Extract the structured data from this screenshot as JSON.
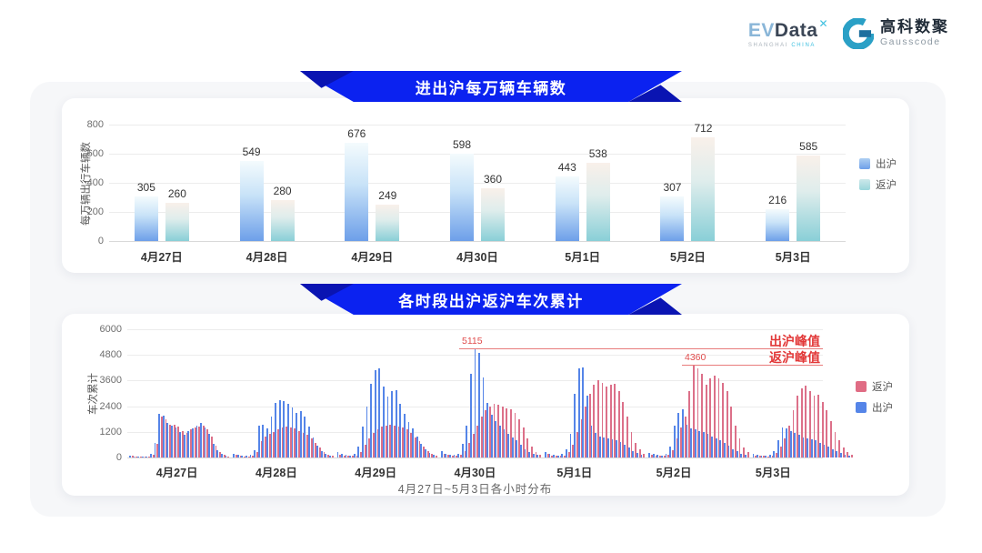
{
  "header": {
    "evdata": {
      "brand_ev": "EV",
      "brand_data": "Data",
      "superscript": "✕",
      "subtext_left": "SHANGHAI",
      "subtext_right": "CHINA"
    },
    "gausscode": {
      "name_cn": "高科数聚",
      "name_en": "Gausscode",
      "icon": "g-mark-icon"
    }
  },
  "colors": {
    "banner_blue": "#0b22f0",
    "banner_fold": "#0a14b2",
    "annotation_red": "#e23838",
    "grid": "#ececec"
  },
  "chart_data": [
    {
      "type": "bar",
      "title": "进出沪每万辆车辆数",
      "ylabel": "每万辆出行车辆数",
      "ylim": [
        0,
        800
      ],
      "yticks": [
        0,
        200,
        400,
        600,
        800
      ],
      "grid": true,
      "legend_position": "right",
      "categories": [
        "4月27日",
        "4月28日",
        "4月29日",
        "4月30日",
        "5月1日",
        "5月2日",
        "5月3日"
      ],
      "series": [
        {
          "name": "出沪",
          "color_top": "#f4fbfd",
          "color_bottom": "#6d9fe9",
          "values": [
            305,
            549,
            676,
            598,
            443,
            307,
            216
          ]
        },
        {
          "name": "返沪",
          "color_top": "#f9f0ea",
          "color_bottom": "#89cfd7",
          "values": [
            260,
            280,
            249,
            360,
            538,
            712,
            585
          ]
        }
      ]
    },
    {
      "type": "bar",
      "title": "各时段出沪返沪车次累计",
      "ylabel": "车次累计",
      "xlabel": "4月27日~5月3日各小时分布",
      "ylim": [
        0,
        6000
      ],
      "yticks": [
        0,
        1200,
        2400,
        3600,
        4800,
        6000
      ],
      "grid": true,
      "legend_position": "right",
      "categories": [
        "4月27日",
        "4月28日",
        "4月29日",
        "4月30日",
        "5月1日",
        "5月2日",
        "5月3日"
      ],
      "legend": [
        {
          "name": "返沪",
          "color": "#e06c84"
        },
        {
          "name": "出沪",
          "color": "#5585e8"
        }
      ],
      "annotations": [
        {
          "label": "出沪峰值",
          "value": 5115
        },
        {
          "label": "返沪峰值",
          "value": 4360
        }
      ],
      "series": [
        {
          "name": "出沪",
          "color": "#5585e8",
          "values_by_day": [
            [
              90,
              60,
              50,
              45,
              60,
              150,
              700,
              2050,
              1950,
              1600,
              1500,
              1400,
              1200,
              1050,
              1250,
              1350,
              1500,
              1600,
              1400,
              1100,
              650,
              320,
              150,
              80
            ],
            [
              180,
              120,
              90,
              80,
              110,
              350,
              1500,
              1550,
              1350,
              1900,
              2550,
              2700,
              2650,
              2500,
              2350,
              2100,
              2150,
              1900,
              1450,
              950,
              550,
              300,
              180,
              100
            ],
            [
              250,
              170,
              120,
              100,
              150,
              500,
              1450,
              2400,
              3450,
              4100,
              4150,
              3300,
              2850,
              3100,
              3150,
              2500,
              2050,
              1650,
              1350,
              1000,
              650,
              380,
              220,
              130
            ],
            [
              280,
              190,
              140,
              110,
              190,
              650,
              1500,
              3900,
              5115,
              4880,
              3750,
              2550,
              2000,
              1700,
              1500,
              1300,
              1100,
              950,
              800,
              600,
              400,
              260,
              170,
              110
            ],
            [
              240,
              170,
              120,
              100,
              150,
              400,
              1100,
              3000,
              4150,
              4200,
              2900,
              1500,
              1150,
              1000,
              950,
              900,
              850,
              800,
              720,
              600,
              450,
              300,
              200,
              130
            ],
            [
              200,
              150,
              110,
              90,
              150,
              500,
              1500,
              2100,
              2250,
              1550,
              1350,
              1300,
              1250,
              1200,
              1100,
              1000,
              900,
              800,
              700,
              550,
              400,
              280,
              190,
              120
            ],
            [
              150,
              110,
              90,
              80,
              120,
              300,
              800,
              1400,
              1350,
              1250,
              1150,
              1050,
              950,
              900,
              850,
              800,
              700,
              600,
              500,
              400,
              300,
              200,
              140,
              90
            ]
          ]
        },
        {
          "name": "返沪",
          "color": "#dc7089",
          "values_by_day": [
            [
              70,
              50,
              40,
              35,
              50,
              120,
              650,
              1900,
              1800,
              1550,
              1550,
              1450,
              1250,
              1150,
              1300,
              1400,
              1450,
              1500,
              1300,
              1000,
              550,
              260,
              110,
              60
            ],
            [
              110,
              80,
              60,
              55,
              80,
              250,
              750,
              1000,
              1100,
              1200,
              1300,
              1400,
              1450,
              1400,
              1350,
              1250,
              1150,
              1050,
              900,
              700,
              450,
              260,
              140,
              80
            ],
            [
              140,
              100,
              80,
              70,
              90,
              250,
              600,
              900,
              1150,
              1300,
              1450,
              1500,
              1550,
              1500,
              1450,
              1400,
              1300,
              1150,
              950,
              750,
              500,
              300,
              170,
              100
            ],
            [
              170,
              120,
              90,
              80,
              120,
              300,
              700,
              1100,
              1500,
              1900,
              2200,
              2400,
              2500,
              2450,
              2400,
              2300,
              2250,
              2100,
              1800,
              1400,
              900,
              500,
              270,
              140
            ],
            [
              150,
              100,
              80,
              70,
              100,
              250,
              600,
              1200,
              1800,
              2400,
              3000,
              3400,
              3600,
              3500,
              3300,
              3400,
              3450,
              3100,
              2600,
              1900,
              1200,
              700,
              380,
              190
            ],
            [
              120,
              100,
              80,
              70,
              120,
              350,
              900,
              1400,
              1900,
              3100,
              4360,
              4150,
              3900,
              3400,
              3700,
              3850,
              3700,
              3500,
              3100,
              2400,
              1500,
              900,
              480,
              240
            ],
            [
              100,
              80,
              70,
              60,
              90,
              200,
              500,
              900,
              1500,
              2200,
              2900,
              3250,
              3350,
              3100,
              2900,
              2950,
              2600,
              2200,
              1700,
              1200,
              800,
              450,
              240,
              110
            ]
          ]
        }
      ]
    }
  ]
}
